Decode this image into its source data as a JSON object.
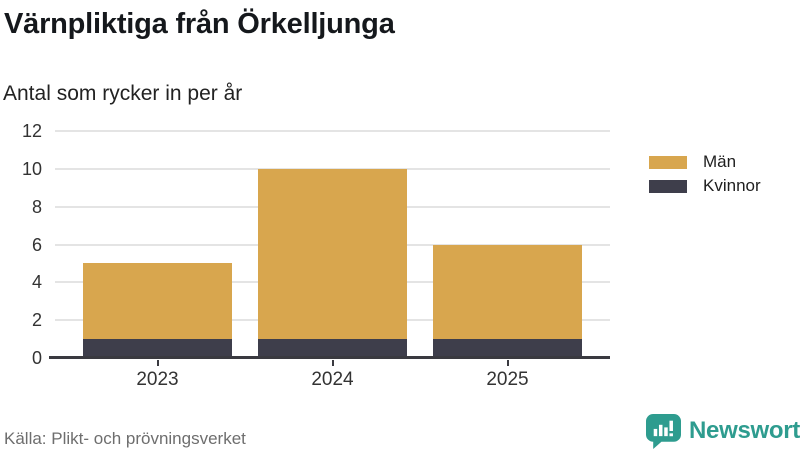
{
  "header": {
    "title": "Värnpliktiga från Örkelljunga",
    "subtitle": "Antal som rycker in per år"
  },
  "legend": {
    "items": [
      {
        "label": "Män",
        "color": "#D8A64E"
      },
      {
        "label": "Kvinnor",
        "color": "#3E3E4B"
      }
    ]
  },
  "footer": {
    "source": "Källa: Plikt- och prövningsverket",
    "brand": "Newsworthy",
    "brand_color": "#2E9C8F"
  },
  "colors": {
    "grid": "#E4E4E4",
    "axis": "#3A3A40",
    "tick_text": "#333333"
  },
  "chart_data": {
    "type": "bar",
    "stacked": true,
    "title": "Värnpliktiga från Örkelljunga",
    "subtitle": "Antal som rycker in per år",
    "categories": [
      "2023",
      "2024",
      "2025"
    ],
    "series": [
      {
        "name": "Kvinnor",
        "color": "#3E3E4B",
        "values": [
          1,
          1,
          1
        ]
      },
      {
        "name": "Män",
        "color": "#D8A64E",
        "values": [
          4,
          9,
          5
        ]
      }
    ],
    "totals": [
      5,
      10,
      6
    ],
    "ylim": [
      0,
      12
    ],
    "yticks": [
      0,
      2,
      4,
      6,
      8,
      10,
      12
    ],
    "grid": true,
    "legend_position": "right",
    "xlabel": "",
    "ylabel": "",
    "source": "Källa: Plikt- och prövningsverket"
  }
}
